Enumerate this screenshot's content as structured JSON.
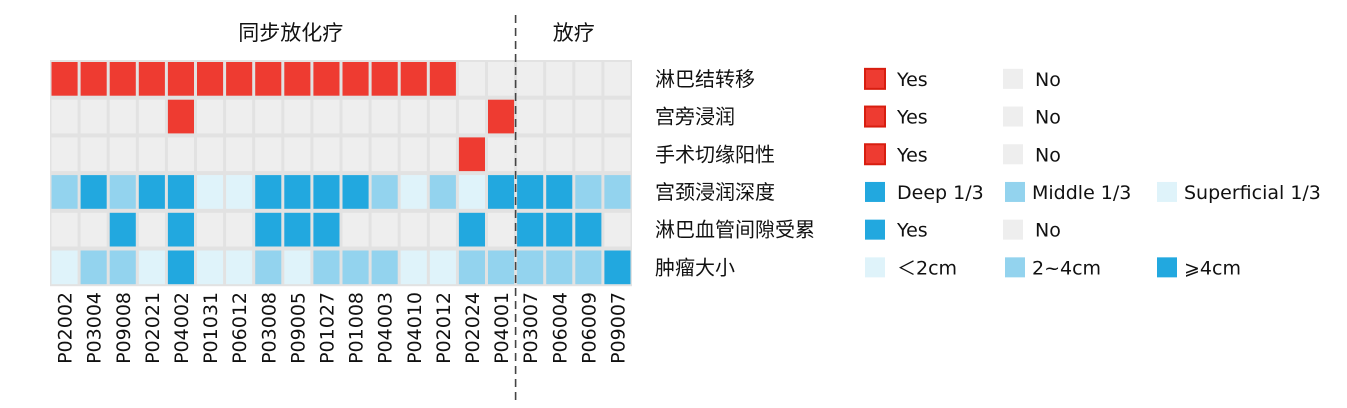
{
  "chart_data": {
    "type": "heatmap",
    "groups": [
      {
        "label": "同步放化疗",
        "count": 16
      },
      {
        "label": "放疗",
        "count": 4
      }
    ],
    "columns": [
      "P02002",
      "P03004",
      "P09008",
      "P02021",
      "P04002",
      "P01031",
      "P06012",
      "P03008",
      "P09005",
      "P01027",
      "P01008",
      "P04003",
      "P04010",
      "P02012",
      "P02024",
      "P04001",
      "P03007",
      "P06004",
      "P06009",
      "P09007"
    ],
    "rows": [
      {
        "label": "淋巴结转移",
        "values": [
          "Y",
          "Y",
          "Y",
          "Y",
          "Y",
          "Y",
          "Y",
          "Y",
          "Y",
          "Y",
          "Y",
          "Y",
          "Y",
          "Y",
          "N",
          "N",
          "N",
          "N",
          "N",
          "N"
        ],
        "legend": [
          {
            "key": "Y",
            "label": "Yes"
          },
          {
            "key": "N",
            "label": "No"
          }
        ]
      },
      {
        "label": "宫旁浸润",
        "values": [
          "N",
          "N",
          "N",
          "N",
          "Y",
          "N",
          "N",
          "N",
          "N",
          "N",
          "N",
          "N",
          "N",
          "N",
          "N",
          "Y",
          "N",
          "N",
          "N",
          "N"
        ],
        "legend": [
          {
            "key": "Y",
            "label": "Yes"
          },
          {
            "key": "N",
            "label": "No"
          }
        ]
      },
      {
        "label": "手术切缘阳性",
        "values": [
          "N",
          "N",
          "N",
          "N",
          "N",
          "N",
          "N",
          "N",
          "N",
          "N",
          "N",
          "N",
          "N",
          "N",
          "Y",
          "N",
          "N",
          "N",
          "N",
          "N"
        ],
        "legend": [
          {
            "key": "Y",
            "label": "Yes"
          },
          {
            "key": "N",
            "label": "No"
          }
        ]
      },
      {
        "label": "宫颈浸润深度",
        "values": [
          "M",
          "D",
          "M",
          "D",
          "D",
          "S",
          "S",
          "D",
          "D",
          "D",
          "D",
          "M",
          "S",
          "M",
          "S",
          "D",
          "D",
          "D",
          "M",
          "M"
        ],
        "legend": [
          {
            "key": "D",
            "label": "Deep 1/3"
          },
          {
            "key": "M",
            "label": "Middle 1/3"
          },
          {
            "key": "S",
            "label": "Superficial 1/3"
          }
        ]
      },
      {
        "label": "淋巴血管间隙受累",
        "values": [
          "N",
          "N",
          "B",
          "N",
          "B",
          "N",
          "N",
          "B",
          "B",
          "B",
          "N",
          "N",
          "N",
          "N",
          "B",
          "N",
          "B",
          "B",
          "B",
          "N"
        ],
        "legend": [
          {
            "key": "B",
            "label": "Yes"
          },
          {
            "key": "N",
            "label": "No"
          }
        ]
      },
      {
        "label": "肿瘤大小",
        "values": [
          "S",
          "M",
          "M",
          "S",
          "D",
          "S",
          "S",
          "M",
          "S",
          "M",
          "M",
          "M",
          "S",
          "S",
          "M",
          "M",
          "M",
          "M",
          "M",
          "D"
        ],
        "legend": [
          {
            "key": "S",
            "label": "＜2cm"
          },
          {
            "key": "M",
            "label": "2~4cm"
          },
          {
            "key": "D",
            "label": "⩾4cm"
          }
        ]
      }
    ],
    "colors": {
      "Y": "#EE3B31",
      "N": "#EEEEEE",
      "B": "#22A8DF",
      "D": "#22A8DF",
      "M": "#93D3EE",
      "S": "#DFF3FA"
    }
  }
}
